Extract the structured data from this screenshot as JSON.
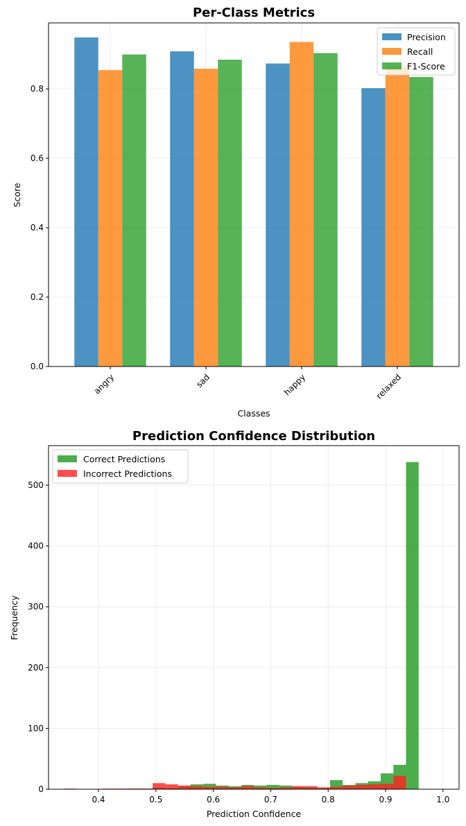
{
  "chart_data": [
    {
      "type": "bar",
      "title": "Per-Class Metrics",
      "xlabel": "Classes",
      "ylabel": "Score",
      "categories": [
        "angry",
        "sad",
        "happy",
        "relaxed"
      ],
      "series": [
        {
          "name": "Precision",
          "color": "#1f77b4",
          "values": [
            0.948,
            0.908,
            0.873,
            0.802
          ]
        },
        {
          "name": "Recall",
          "color": "#ff7f0e",
          "values": [
            0.854,
            0.858,
            0.935,
            0.866
          ]
        },
        {
          "name": "F1-Score",
          "color": "#2ca02c",
          "values": [
            0.899,
            0.884,
            0.903,
            0.834
          ]
        }
      ],
      "ylim": [
        0,
        0.99
      ],
      "yticks": [
        0.0,
        0.2,
        0.4,
        0.6,
        0.8
      ],
      "ytick_labels": [
        "0.0",
        "0.2",
        "0.4",
        "0.6",
        "0.8"
      ],
      "grid": true,
      "legend_position": "top-right",
      "bar_alpha": 0.8
    },
    {
      "type": "histogram",
      "title": "Prediction Confidence Distribution",
      "xlabel": "Prediction Confidence",
      "ylabel": "Frequency",
      "bin_edges": [
        0.34,
        0.3621,
        0.3841,
        0.4062,
        0.4282,
        0.4503,
        0.4724,
        0.4944,
        0.5165,
        0.5386,
        0.5606,
        0.5827,
        0.6047,
        0.6268,
        0.6489,
        0.6709,
        0.693,
        0.715,
        0.7371,
        0.7592,
        0.7812,
        0.8033,
        0.8253,
        0.8474,
        0.8695,
        0.8915,
        0.9136,
        0.9356,
        0.9577,
        0.9798,
        1.0
      ],
      "series": [
        {
          "name": "Correct Predictions",
          "color": "#2ca02c",
          "alpha": 0.85,
          "counts": [
            0,
            0,
            0,
            0,
            0,
            1,
            1,
            3,
            2,
            5,
            8,
            9,
            6,
            5,
            7,
            6,
            7,
            6,
            4,
            3,
            2,
            15,
            7,
            10,
            13,
            26,
            40,
            538,
            0,
            0
          ]
        },
        {
          "name": "Incorrect Predictions",
          "color": "#ff2020",
          "alpha": 0.8,
          "counts": [
            1,
            0,
            0,
            1,
            1,
            1,
            1,
            10,
            8,
            6,
            5,
            4,
            4,
            3,
            5,
            3,
            2,
            3,
            5,
            5,
            3,
            4,
            6,
            7,
            8,
            9,
            22,
            0,
            0,
            0
          ]
        }
      ],
      "xlim": [
        0.313,
        1.028
      ],
      "ylim": [
        0,
        565
      ],
      "xticks": [
        0.4,
        0.5,
        0.6,
        0.7,
        0.8,
        0.9,
        1.0
      ],
      "xtick_labels": [
        "0.4",
        "0.5",
        "0.6",
        "0.7",
        "0.8",
        "0.9",
        "1.0"
      ],
      "yticks": [
        0,
        100,
        200,
        300,
        400,
        500
      ],
      "ytick_labels": [
        "0",
        "100",
        "200",
        "300",
        "400",
        "500"
      ],
      "grid": true,
      "legend_position": "top-left"
    }
  ]
}
